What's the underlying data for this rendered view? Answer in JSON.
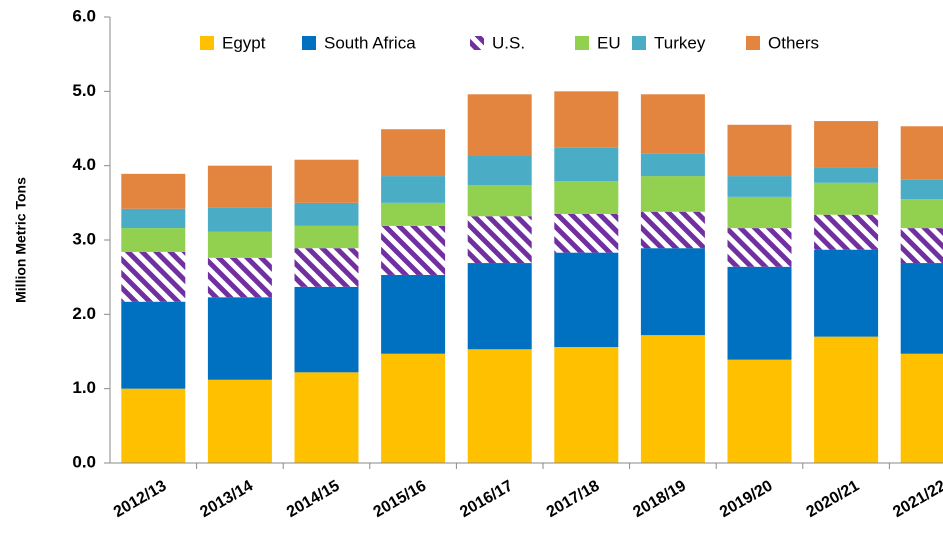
{
  "chart_data": {
    "type": "stacked_bar",
    "categories": [
      "2012/13",
      "2013/14",
      "2014/15",
      "2015/16",
      "2016/17",
      "2017/18",
      "2018/19",
      "2019/20",
      "2020/21",
      "2021/22"
    ],
    "series": [
      {
        "name": "Egypt",
        "color": "#ffc000",
        "values": [
          1.0,
          1.12,
          1.22,
          1.47,
          1.53,
          1.56,
          1.72,
          1.39,
          1.7,
          1.47
        ]
      },
      {
        "name": "South Africa",
        "color": "#0070c0",
        "values": [
          1.17,
          1.11,
          1.15,
          1.06,
          1.16,
          1.27,
          1.17,
          1.25,
          1.17,
          1.22
        ]
      },
      {
        "name": "U.S.",
        "color": "#7030a0",
        "pattern": "diagonal-stripes",
        "values": [
          0.67,
          0.53,
          0.52,
          0.66,
          0.63,
          0.52,
          0.49,
          0.52,
          0.47,
          0.47
        ]
      },
      {
        "name": "EU",
        "color": "#92d050",
        "values": [
          0.32,
          0.35,
          0.3,
          0.31,
          0.42,
          0.44,
          0.48,
          0.42,
          0.43,
          0.39
        ]
      },
      {
        "name": "Turkey",
        "color": "#4bacc6",
        "values": [
          0.26,
          0.33,
          0.31,
          0.36,
          0.39,
          0.45,
          0.3,
          0.28,
          0.21,
          0.26
        ]
      },
      {
        "name": "Others",
        "color": "#e3843f",
        "values": [
          0.47,
          0.56,
          0.58,
          0.63,
          0.83,
          0.76,
          0.8,
          0.69,
          0.62,
          0.72
        ]
      }
    ],
    "y_label": "Million Metric Tons",
    "ylim": [
      0,
      6
    ],
    "yticks": [
      {
        "value": 0,
        "label": "0.0"
      },
      {
        "value": 1,
        "label": "1.0"
      },
      {
        "value": 2,
        "label": "2.0"
      },
      {
        "value": 3,
        "label": "3.0"
      },
      {
        "value": 4,
        "label": "4.0"
      },
      {
        "value": 5,
        "label": "5.0"
      },
      {
        "value": 6,
        "label": "6.0"
      }
    ],
    "legend": "top"
  }
}
